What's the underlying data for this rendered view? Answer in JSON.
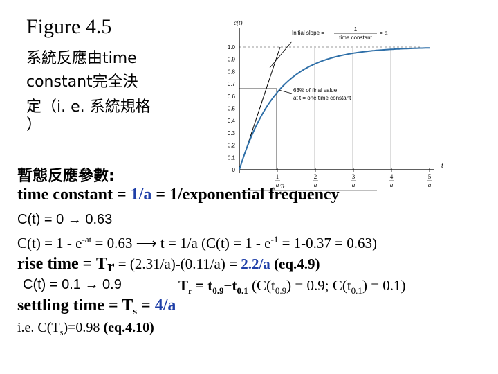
{
  "title": "Figure 4.5",
  "description": {
    "line1": "系統反應由time",
    "line2": "constant完全決",
    "line3": "定（i. e. 系統規格",
    "line4": "）"
  },
  "plot": {
    "y_axis_label": "c(t)",
    "t_axis_label": "t",
    "y_ticks": [
      "1.0",
      "0.9",
      "0.8",
      "0.7",
      "0.6",
      "0.5",
      "0.4",
      "0.3",
      "0.2",
      "0.1",
      "0"
    ],
    "x_tick_numerators": [
      "1",
      "2",
      "3",
      "4",
      "5"
    ],
    "x_tick_denominator": "a",
    "annotation_slope_label": "Initial slope =",
    "annotation_slope_num": "1",
    "annotation_slope_den": "time constant",
    "annotation_slope_rhs": "= a",
    "annotation_63_line1": "63% of final value",
    "annotation_63_line2": "at t = one time constant",
    "tc_marker": "Tc"
  },
  "transient_heading": "暫態反應參數:",
  "time_constant": {
    "prefix": "time constant = ",
    "value1": "1/a",
    "middle": " = ",
    "value2": "1/exponential frequency"
  },
  "c_line1": {
    "text": "C(t) =  0 → 0.63"
  },
  "c_line2": {
    "part1": "C(t) = 1 - e",
    "sup1": "-at",
    "part2": " = 0.63  ⟶  t = 1/a   (C(t) = 1 - e",
    "sup2": "-1",
    "part3": " = 1-0.37 = 0.63)"
  },
  "rise_time": {
    "label": "rise time = T",
    "sub": "r",
    "formula": " = (2.31/a)-(0.11/a) = ",
    "result": "2.2/a",
    "eq": "   (eq.4.9)"
  },
  "c_line3": {
    "text": "C(t) =  0.1 → 0.9"
  },
  "tr_def": {
    "lhs": "T",
    "lhs_sub": "r",
    "mid": " = t",
    "sub1": "0.9",
    "mid2": "−t",
    "sub2": "0.1",
    "rhs1": "  (C(t",
    "rhs_sub1": "0.9",
    "rhs2": ") = 0.9; C(t",
    "rhs_sub2": "0.1",
    "rhs3": ") = 0.1)"
  },
  "settling_time": {
    "label": "settling time = T",
    "sub": "s",
    "eq": " = ",
    "result": "4/a"
  },
  "ie_line": {
    "prefix": "i.e. C(T",
    "sub": "s",
    "suffix": ")=0.98   ",
    "eq": "(eq.4.10)"
  },
  "colors": {
    "curve": "#2e6fa8",
    "accent_blue": "#1f3fa8"
  }
}
